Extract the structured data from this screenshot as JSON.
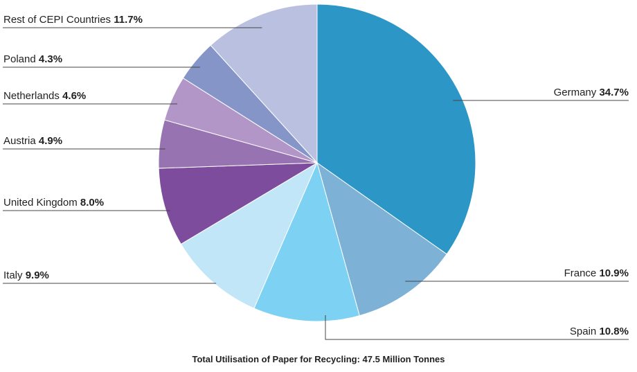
{
  "chart_data": {
    "type": "pie",
    "caption": "Total Utilisation of Paper for Recycling: 47.5 Million Tonnes",
    "slices": [
      {
        "label": "Germany",
        "pct_label": "34.7%",
        "value": 34.7,
        "color": "#2c96c6"
      },
      {
        "label": "France",
        "pct_label": "10.9%",
        "value": 10.9,
        "color": "#7eb1d6"
      },
      {
        "label": "Spain",
        "pct_label": "10.8%",
        "value": 10.8,
        "color": "#7dd1f2"
      },
      {
        "label": "Italy",
        "pct_label": "9.9%",
        "value": 9.9,
        "color": "#c1e6f8"
      },
      {
        "label": "United Kingdom",
        "pct_label": "8.0%",
        "value": 8.0,
        "color": "#7e4c9c"
      },
      {
        "label": "Austria",
        "pct_label": "4.9%",
        "value": 4.9,
        "color": "#9873b1"
      },
      {
        "label": "Netherlands",
        "pct_label": "4.6%",
        "value": 4.6,
        "color": "#b296c8"
      },
      {
        "label": "Poland",
        "pct_label": "4.3%",
        "value": 4.3,
        "color": "#8595c8"
      },
      {
        "label": "Rest of CEPI Countries",
        "pct_label": "11.7%",
        "value": 11.7,
        "color": "#bac1e0"
      }
    ]
  }
}
